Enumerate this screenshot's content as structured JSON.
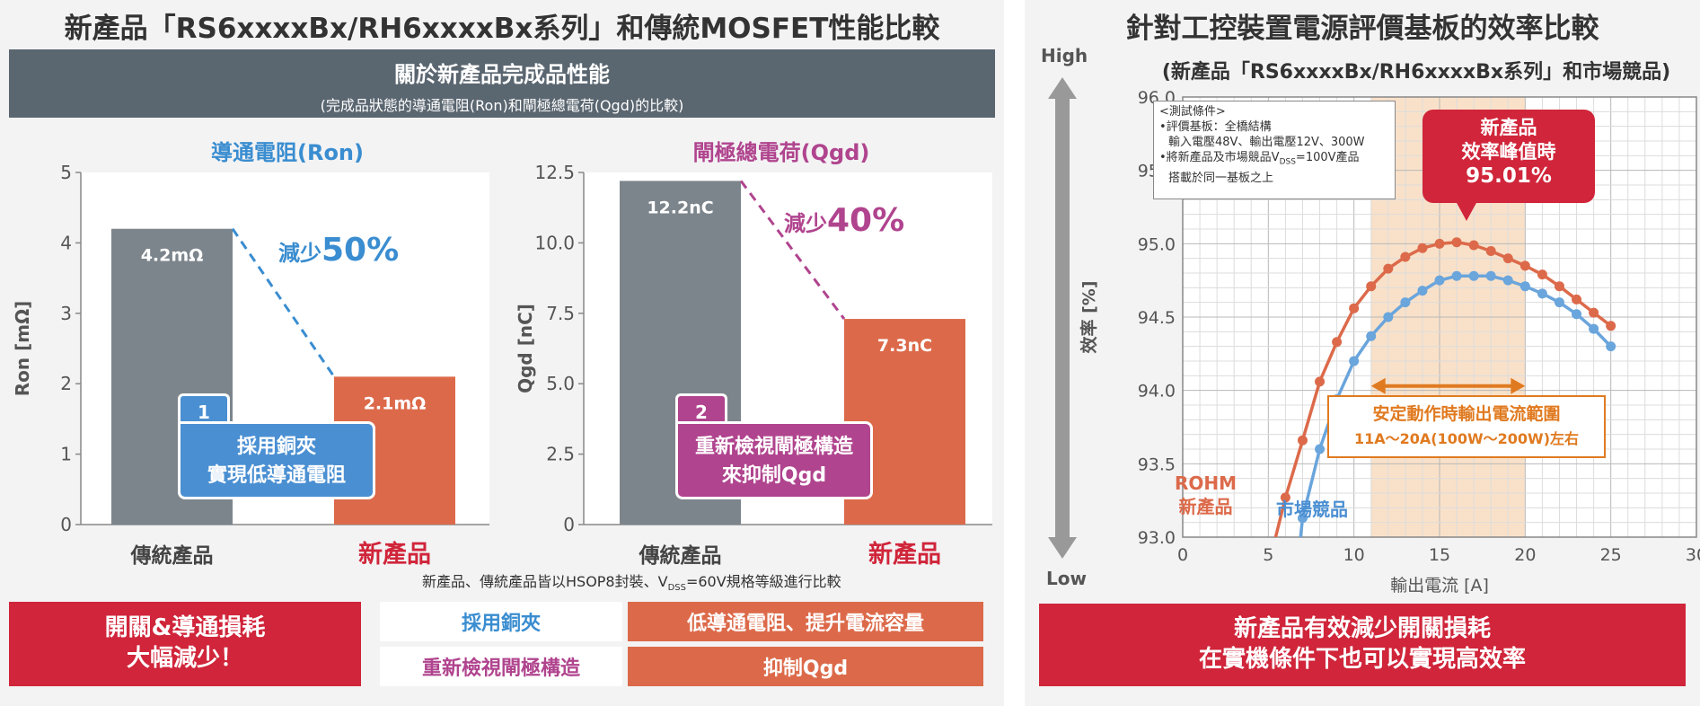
{
  "left": {
    "title": "新產品「RS6xxxxBx/RH6xxxxBx系列」和傳統MOSFET性能比較",
    "header_line1": "關於新產品完成品性能",
    "header_line2": "(完成品狀態的導通電阻(Ron)和閘極總電荷(Qgd)的比較)",
    "ron_callout": {
      "num": "1",
      "line1": "採用銅夾",
      "line2": "實現低導通電阻"
    },
    "qgd_callout": {
      "num": "2",
      "line1": "重新檢視閘極構造",
      "line2": "來抑制Qgd"
    },
    "reduce_ron": {
      "prefix": "減少",
      "pct": "50%"
    },
    "reduce_qgd": {
      "prefix": "減少",
      "pct": "40%"
    },
    "footnote_a": "新產品、傳統產品皆以HSOP8封裝、V",
    "footnote_sub": "DSS",
    "footnote_b": "=60V規格等級進行比較",
    "summary_line1": "開關&導通損耗",
    "summary_line2": "大幅減少！",
    "feature_rows": [
      {
        "label": "採用銅夾",
        "result": "低導通電阻、提升電流容量"
      },
      {
        "label": "重新檢視閘極構造",
        "result": "抑制Qgd"
      }
    ]
  },
  "right": {
    "title": "針對工控裝置電源評價基板的效率比較",
    "subtitle": "(新產品「RS6xxxxBx/RH6xxxxBx系列」和市場競品)",
    "high_label": "High",
    "low_label": "Low",
    "conditions": {
      "title": "<測試條件>",
      "line1": "•評價基板：全橋結構",
      "line2": "輸入電壓48V、輸出電壓12V、300W",
      "line3a": "•將新產品及市場競品V",
      "line3sub": "DSS",
      "line3b": "=100V產品",
      "line4": "搭載於同一基板之上"
    },
    "peak_callout": {
      "line1": "新產品",
      "line2": "效率峰值時",
      "line3": "95.01%"
    },
    "range_callout": {
      "line1": "安定動作時輸出電流範圍",
      "line2": "11A～20A(100W～200W)左右"
    },
    "rohm_label_1": "ROHM",
    "rohm_label_2": "新產品",
    "competitor_label": "市場競品",
    "conclusion_line1": "新產品有效減少開關損耗",
    "conclusion_line2": "在實機條件下也可以實現高效率"
  },
  "chart_data": [
    {
      "type": "bar",
      "title": "導通電阻(Ron)",
      "categories": [
        "傳統產品",
        "新產品"
      ],
      "values": [
        4.2,
        2.1
      ],
      "value_labels": [
        "4.2mΩ",
        "2.1mΩ"
      ],
      "xlabel": "",
      "ylabel": "Ron [mΩ]",
      "ylim": [
        0,
        5
      ],
      "yticks": [
        0,
        1,
        2,
        3,
        4,
        5
      ],
      "ytick_labels": [
        "0",
        "1",
        "2",
        "3",
        "4",
        "5"
      ],
      "colors": [
        "#7d858c",
        "#dc6a4a"
      ],
      "title_color": "#3a8dd0"
    },
    {
      "type": "bar",
      "title": "閘極總電荷(Qgd)",
      "categories": [
        "傳統產品",
        "新產品"
      ],
      "values": [
        12.2,
        7.3
      ],
      "value_labels": [
        "12.2nC",
        "7.3nC"
      ],
      "xlabel": "",
      "ylabel": "Qgd [nC]",
      "ylim": [
        0,
        12.5
      ],
      "yticks": [
        0,
        2.5,
        5,
        7.5,
        10,
        12.5
      ],
      "ytick_labels": [
        "0",
        "2.5",
        "5.0",
        "7.5",
        "10.0",
        "12.5"
      ],
      "colors": [
        "#7d858c",
        "#dc6a4a"
      ],
      "title_color": "#b0448e"
    },
    {
      "type": "line",
      "title": "",
      "xlabel": "輸出電流 [A]",
      "ylabel": "效率 [%]",
      "xlim": [
        0,
        30
      ],
      "ylim": [
        93.0,
        96.0
      ],
      "xticks": [
        0,
        5,
        10,
        15,
        20,
        25,
        30
      ],
      "yticks": [
        93.0,
        93.5,
        94.0,
        94.5,
        95.0,
        95.5,
        96.0
      ],
      "ytick_labels": [
        "93.0",
        "93.5",
        "94.0",
        "94.5",
        "95.0",
        "95.5",
        "96.0"
      ],
      "grid": true,
      "highlight_range": [
        11,
        20
      ],
      "series": [
        {
          "name": "ROHM 新產品",
          "color": "#dc6a4a",
          "x": [
            5.0,
            6.0,
            7.0,
            8.0,
            9.0,
            10.0,
            11.0,
            12.0,
            13.0,
            14.0,
            15.0,
            16.0,
            17.0,
            18.0,
            19.0,
            20.0,
            21.0,
            22.0,
            23.0,
            24.0,
            25.0
          ],
          "y": [
            92.8,
            93.27,
            93.66,
            94.06,
            94.33,
            94.56,
            94.71,
            94.83,
            94.91,
            94.97,
            95.0,
            95.01,
            94.99,
            94.95,
            94.9,
            94.85,
            94.79,
            94.71,
            94.62,
            94.53,
            94.44
          ]
        },
        {
          "name": "市場競品",
          "color": "#6aa5dc",
          "x": [
            6.7,
            7.0,
            8.0,
            9.0,
            10.0,
            11.0,
            12.0,
            13.0,
            14.0,
            15.0,
            16.0,
            17.0,
            18.0,
            19.0,
            20.0,
            21.0,
            22.0,
            23.0,
            24.0,
            25.0
          ],
          "y": [
            92.8,
            93.13,
            93.6,
            93.94,
            94.2,
            94.37,
            94.5,
            94.6,
            94.68,
            94.75,
            94.78,
            94.78,
            94.78,
            94.75,
            94.71,
            94.66,
            94.6,
            94.52,
            94.42,
            94.3
          ]
        }
      ]
    }
  ]
}
